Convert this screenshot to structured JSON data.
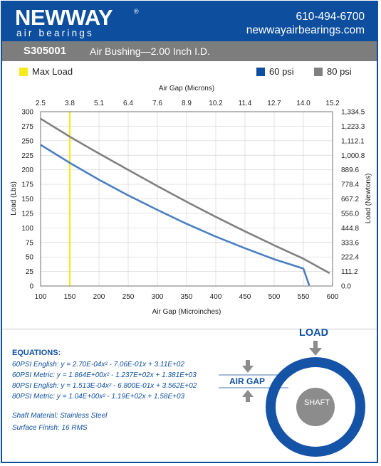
{
  "header": {
    "logo_main": "NEWWAY",
    "logo_reg": "®",
    "logo_sub": "air bearings",
    "phone": "610-494-6700",
    "website": "newwayairbearings.com",
    "brand_color": "#0d4f9e"
  },
  "titlebar": {
    "model": "S305001",
    "description": "Air Bushing—2.00 Inch I.D."
  },
  "legend": {
    "max_load": "Max Load",
    "series_60": "60 psi",
    "series_80": "80 psi",
    "colors": {
      "max_load": "#f7ea1c",
      "series_60": "#0d4f9e",
      "series_80": "#808080"
    }
  },
  "chart_data": {
    "type": "line",
    "title": "",
    "xlabel": "Air Gap (Microinches)",
    "x2label": "Air Gap (Microns)",
    "ylabel": "Load (Lbs)",
    "y2label": "Load (Newtons)",
    "xlim": [
      100,
      600
    ],
    "ylim": [
      0,
      300
    ],
    "x_ticks": [
      "100",
      "150",
      "200",
      "250",
      "300",
      "350",
      "400",
      "450",
      "500",
      "550",
      "600"
    ],
    "x2_ticks": [
      "2.5",
      "3.8",
      "5.1",
      "6.4",
      "7.6",
      "8.9",
      "10.2",
      "11.4",
      "12.7",
      "14.0",
      "15.2"
    ],
    "y_ticks": [
      "0",
      "25",
      "50",
      "75",
      "100",
      "125",
      "150",
      "175",
      "200",
      "225",
      "250",
      "275",
      "300"
    ],
    "y2_ticks": [
      "0.0",
      "111.2",
      "222.4",
      "333.6",
      "444.8",
      "556.0",
      "667.2",
      "778.4",
      "889.6",
      "1,000.8",
      "1,112.1",
      "1,223.3",
      "1,334.5"
    ],
    "grid": true,
    "max_load_x": 150,
    "series": [
      {
        "name": "60 psi",
        "color": "#4a7fc1",
        "x": [
          100,
          150,
          200,
          250,
          300,
          350,
          400,
          450,
          500,
          550,
          560
        ],
        "y": [
          243,
          212,
          183,
          156,
          131,
          107,
          85,
          65,
          46,
          30,
          1
        ]
      },
      {
        "name": "80 psi",
        "color": "#808080",
        "x": [
          100,
          150,
          200,
          250,
          300,
          350,
          400,
          450,
          500,
          550,
          595
        ],
        "y": [
          288,
          257,
          228,
          200,
          172,
          145,
          119,
          94,
          70,
          47,
          22
        ]
      }
    ]
  },
  "equations": {
    "title": "EQUATIONS:",
    "lines": [
      "60PSI English:  y = 2.70E-04x² - 7.06E-01x + 3.11E+02",
      "60PSI Metric:  y = 1.864E+00x² - 1.237E+02x + 1.381E+03",
      "80PSI English:  y = 1.513E-04x² - 6.800E-01x + 3.562E+02",
      "80PSI Metric:  y = 1.04E+00x² - 1.19E+02x + 1.58E+03"
    ],
    "shaft_material": "Shaft Material:  Stainless Steel",
    "surface_finish": "Surface Finish:  16 RMS"
  },
  "diagram": {
    "load": "LOAD",
    "air_gap": "AIR GAP",
    "shaft": "SHAFT"
  }
}
